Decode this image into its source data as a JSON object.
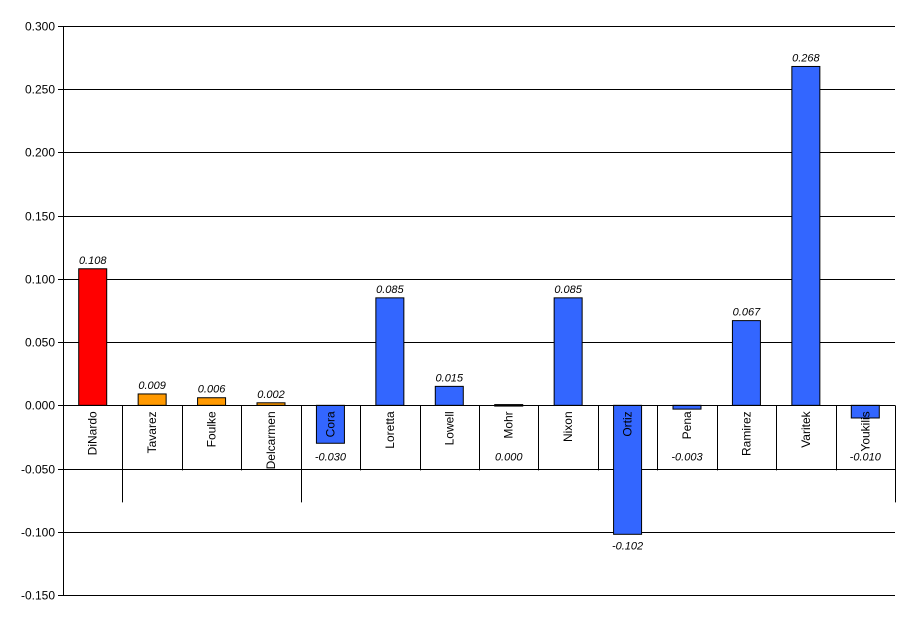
{
  "chart_data": {
    "type": "bar",
    "categories": [
      "DiNardo",
      "Tavarez",
      "Foulke",
      "Delcarmen",
      "Cora",
      "Loretta",
      "Lowell",
      "Mohr",
      "Nixon",
      "Ortiz",
      "Pena",
      "Ramirez",
      "Varitek",
      "Youkilis"
    ],
    "values": [
      0.108,
      0.009,
      0.006,
      0.002,
      -0.03,
      0.085,
      0.015,
      0.0,
      0.085,
      -0.102,
      -0.003,
      0.067,
      0.268,
      -0.01
    ],
    "data_labels": [
      "0.108",
      "0.009",
      "0.006",
      "0.002",
      "-0.030",
      "0.085",
      "0.015",
      "0.000",
      "0.085",
      "-0.102",
      "-0.003",
      "0.067",
      "0.268",
      "-0.010"
    ],
    "bar_colors": [
      "#ff0000",
      "#ff9900",
      "#ff9900",
      "#ff9900",
      "#3366ff",
      "#3366ff",
      "#3366ff",
      "#3366ff",
      "#3366ff",
      "#3366ff",
      "#3366ff",
      "#3366ff",
      "#3366ff",
      "#3366ff"
    ],
    "yticks": [
      "0.300",
      "0.250",
      "0.200",
      "0.150",
      "0.100",
      "0.050",
      "0.000",
      "-0.050",
      "-0.100",
      "-0.150"
    ],
    "ylim": [
      -0.15,
      0.3
    ],
    "grid": true,
    "legend": "none",
    "category_groups": [
      [
        0,
        0
      ],
      [
        1,
        3
      ],
      [
        4,
        13
      ]
    ],
    "title": "",
    "xlabel": "",
    "ylabel": ""
  }
}
